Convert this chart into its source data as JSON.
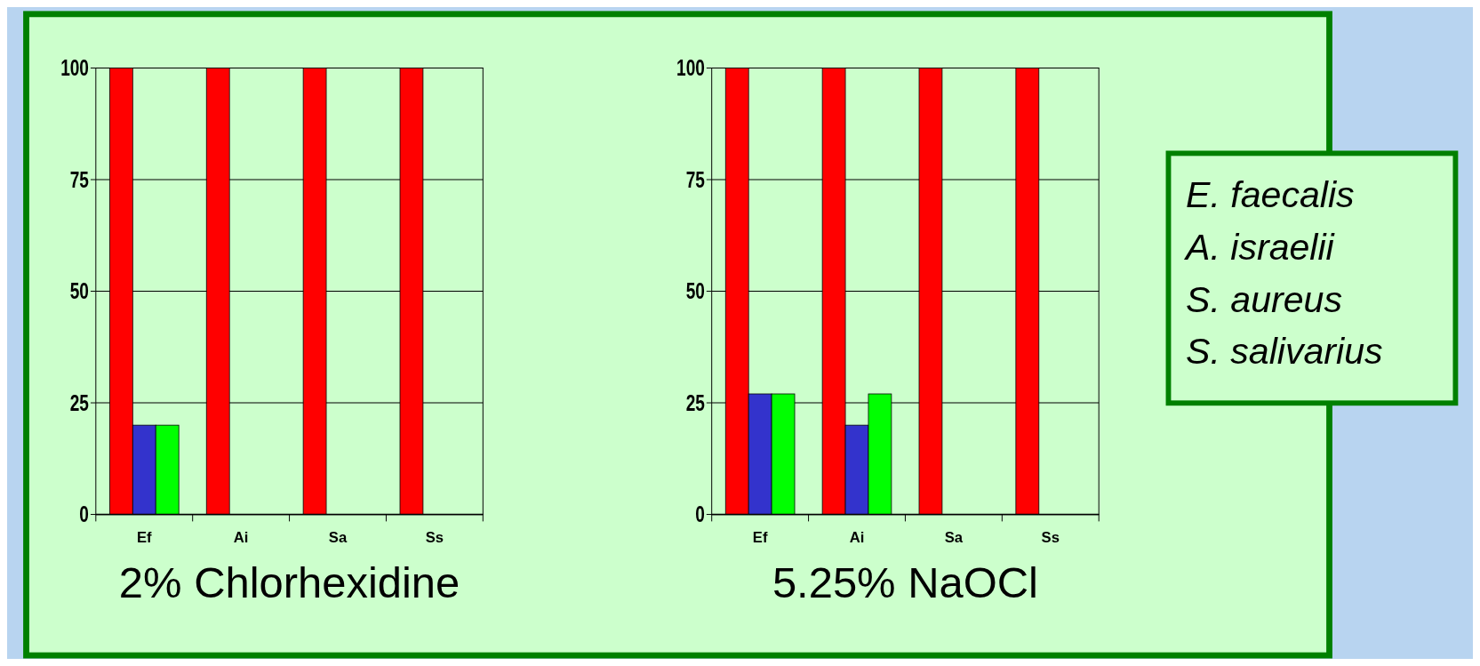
{
  "chart_data": [
    {
      "type": "bar",
      "xlabel": "2% Chlorhexidine",
      "categories": [
        "Ef",
        "Ai",
        "Sa",
        "Ss"
      ],
      "series": [
        {
          "color": "#ff0000",
          "values": [
            100,
            100,
            100,
            100
          ]
        },
        {
          "color": "#3333cc",
          "values": [
            20,
            0,
            0,
            0
          ]
        },
        {
          "color": "#00ff00",
          "values": [
            20,
            0,
            0,
            0
          ]
        }
      ],
      "ylim": [
        0,
        100
      ],
      "yticks": [
        0,
        25,
        50,
        75,
        100
      ],
      "grid": "y"
    },
    {
      "type": "bar",
      "xlabel": "5.25% NaOCl",
      "categories": [
        "Ef",
        "Ai",
        "Sa",
        "Ss"
      ],
      "series": [
        {
          "color": "#ff0000",
          "values": [
            100,
            100,
            100,
            100
          ]
        },
        {
          "color": "#3333cc",
          "values": [
            27,
            20,
            0,
            0
          ]
        },
        {
          "color": "#00ff00",
          "values": [
            27,
            27,
            0,
            0
          ]
        }
      ],
      "ylim": [
        0,
        100
      ],
      "yticks": [
        0,
        25,
        50,
        75,
        100
      ],
      "grid": "y"
    },
    {
      "type": "other",
      "annotations": [
        "E. faecalis",
        "A. israelii",
        "S. aureus",
        "S. salivarius"
      ]
    }
  ]
}
